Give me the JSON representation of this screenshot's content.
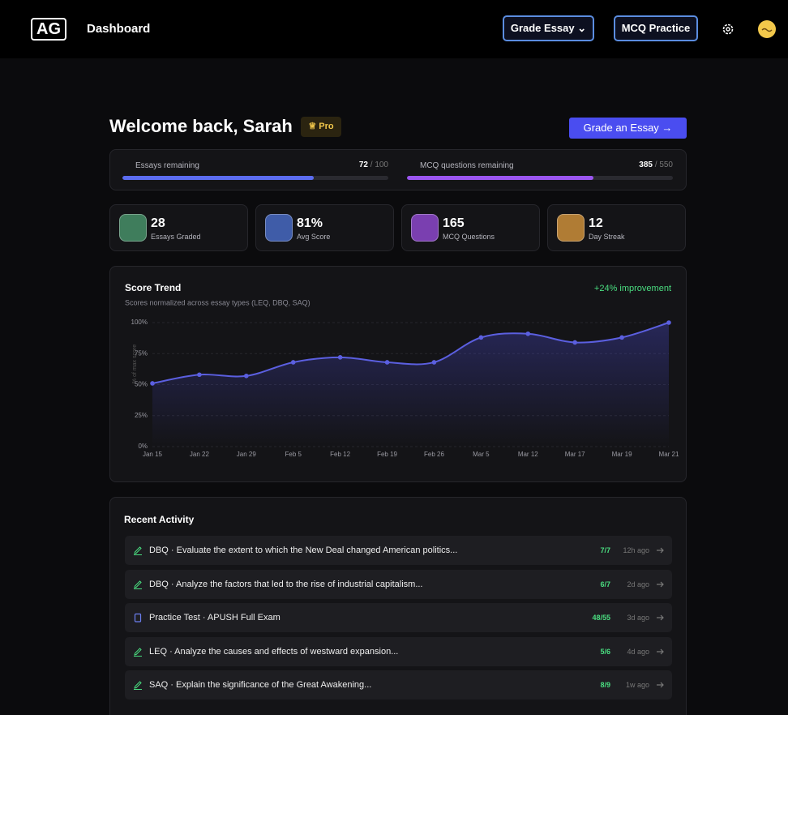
{
  "header": {
    "logo": "AG",
    "title": "Dashboard",
    "grade_button": "Grade Essay",
    "mcq_button": "MCQ Practice"
  },
  "welcome": {
    "greeting": "Welcome back, Sarah",
    "badge": "Pro",
    "cta": "Grade an Essay"
  },
  "quotas": [
    {
      "label": "Essays remaining",
      "used": 72,
      "total": 100,
      "color": "#5b6cf0"
    },
    {
      "label": "MCQ questions remaining",
      "used": 385,
      "total": 550,
      "color": "#9b55f0"
    }
  ],
  "stats": [
    {
      "value": "28",
      "label": "Essays Graded",
      "color": "#3f7d5c"
    },
    {
      "value": "81%",
      "label": "Avg Score",
      "color": "#3f5ca8"
    },
    {
      "value": "165",
      "label": "MCQ Questions",
      "color": "#7a3fb0"
    },
    {
      "value": "12",
      "label": "Day Streak",
      "color": "#b07c34"
    }
  ],
  "chart_data": {
    "type": "line",
    "title": "Score Trend",
    "subtitle": "Scores normalized across essay types (LEQ, DBQ, SAQ)",
    "annotation": "+24% improvement",
    "y_label": "% of max score",
    "categories": [
      "Jan 15",
      "Jan 22",
      "Jan 29",
      "Feb 5",
      "Feb 12",
      "Feb 19",
      "Feb 26",
      "Mar 5",
      "Mar 12",
      "Mar 17",
      "Mar 19",
      "Mar 21"
    ],
    "values": [
      51,
      58,
      57,
      68,
      72,
      68,
      68,
      88,
      91,
      84,
      88,
      100
    ],
    "color": "#5b5fe0",
    "ylim": [
      0,
      100
    ],
    "yticks": [
      {
        "value": 0,
        "label": "0%"
      },
      {
        "value": 25,
        "label": "25%"
      },
      {
        "value": 50,
        "label": "50%"
      },
      {
        "value": 75,
        "label": "75%"
      },
      {
        "value": 100,
        "label": "100%"
      }
    ],
    "grid": true
  },
  "activity": {
    "title": "Recent Activity",
    "rows": [
      {
        "text": "DBQ · Evaluate the extent to which the New Deal changed American politics...",
        "score": "7/7",
        "time": "12h ago",
        "icon": "pen"
      },
      {
        "text": "DBQ · Analyze the factors that led to the rise of industrial capitalism...",
        "score": "6/7",
        "time": "2d ago",
        "icon": "pen"
      },
      {
        "text": "Practice Test · APUSH Full Exam",
        "score": "48/55",
        "time": "3d ago",
        "icon": "clipboard"
      },
      {
        "text": "LEQ · Analyze the causes and effects of westward expansion...",
        "score": "5/6",
        "time": "4d ago",
        "icon": "pen"
      },
      {
        "text": "SAQ · Explain the significance of the Great Awakening...",
        "score": "8/9",
        "time": "1w ago",
        "icon": "pen"
      }
    ]
  }
}
